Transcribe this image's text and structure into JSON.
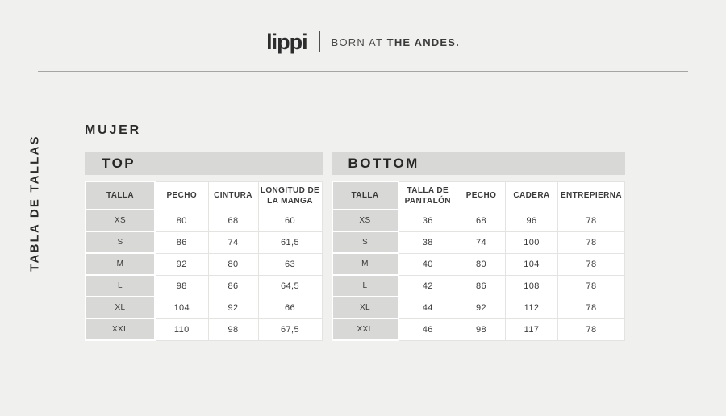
{
  "brand": {
    "logo": "lippi",
    "tagline_light": "BORN AT",
    "tagline_bold": "THE ANDES."
  },
  "page": {
    "vertical_label": "TABLA DE TALLAS",
    "section_title": "MUJER"
  },
  "colors": {
    "background": "#f0f0ee",
    "panel_gray": "#d8d8d6",
    "cell_white": "#ffffff",
    "text": "#3b3b3b",
    "rule": "#a5a5a5"
  },
  "tables": [
    {
      "title": "TOP",
      "headers": [
        "TALLA",
        "PECHO",
        "CINTURA",
        "LONGITUD DE LA MANGA"
      ],
      "rows": [
        {
          "size": "XS",
          "values": [
            "80",
            "68",
            "60"
          ]
        },
        {
          "size": "S",
          "values": [
            "86",
            "74",
            "61,5"
          ]
        },
        {
          "size": "M",
          "values": [
            "92",
            "80",
            "63"
          ]
        },
        {
          "size": "L",
          "values": [
            "98",
            "86",
            "64,5"
          ]
        },
        {
          "size": "XL",
          "values": [
            "104",
            "92",
            "66"
          ]
        },
        {
          "size": "XXL",
          "values": [
            "110",
            "98",
            "67,5"
          ]
        }
      ]
    },
    {
      "title": "BOTTOM",
      "headers": [
        "TALLA",
        "TALLA DE PANTALÓN",
        "PECHO",
        "CADERA",
        "ENTREPIERNA"
      ],
      "rows": [
        {
          "size": "XS",
          "values": [
            "36",
            "68",
            "96",
            "78"
          ]
        },
        {
          "size": "S",
          "values": [
            "38",
            "74",
            "100",
            "78"
          ]
        },
        {
          "size": "M",
          "values": [
            "40",
            "80",
            "104",
            "78"
          ]
        },
        {
          "size": "L",
          "values": [
            "42",
            "86",
            "108",
            "78"
          ]
        },
        {
          "size": "XL",
          "values": [
            "44",
            "92",
            "112",
            "78"
          ]
        },
        {
          "size": "XXL",
          "values": [
            "46",
            "98",
            "117",
            "78"
          ]
        }
      ]
    }
  ]
}
